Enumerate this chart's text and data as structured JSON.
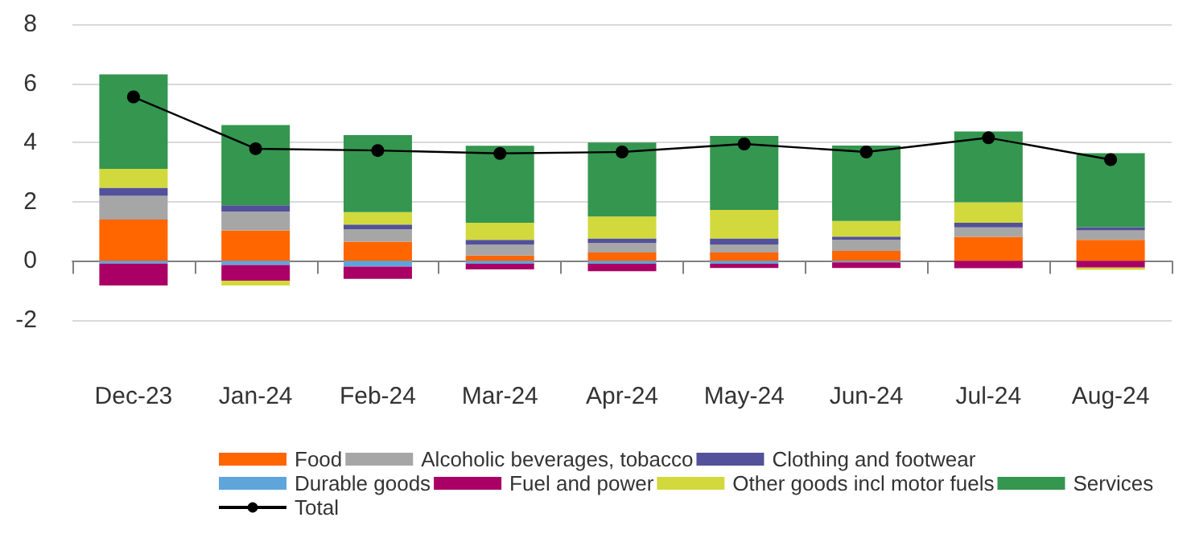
{
  "chart_data": {
    "type": "bar",
    "stacked": true,
    "categories": [
      "Dec-23",
      "Jan-24",
      "Feb-24",
      "Mar-24",
      "Apr-24",
      "May-24",
      "Jun-24",
      "Jul-24",
      "Aug-24"
    ],
    "ylim": [
      -2,
      8
    ],
    "yticks": [
      -2,
      0,
      2,
      4,
      6,
      8
    ],
    "grid": "y",
    "legend": "bottom",
    "series": [
      {
        "name": "Food",
        "color": "#ff6600",
        "values": [
          1.4,
          1.03,
          0.65,
          0.18,
          0.28,
          0.28,
          0.34,
          0.81,
          0.71
        ]
      },
      {
        "name": "Alcoholic beverages, tobacco",
        "color": "#a6a6a6",
        "values": [
          0.8,
          0.64,
          0.42,
          0.37,
          0.32,
          0.27,
          0.37,
          0.32,
          0.32
        ]
      },
      {
        "name": "Clothing and footwear",
        "color": "#525199",
        "values": [
          0.27,
          0.21,
          0.16,
          0.16,
          0.16,
          0.21,
          0.11,
          0.16,
          0.11
        ]
      },
      {
        "name": "Durable goods",
        "color": "#5ea5dc",
        "values": [
          -0.09,
          -0.14,
          -0.19,
          -0.1,
          -0.1,
          -0.1,
          -0.05,
          0,
          0
        ]
      },
      {
        "name": "Fuel and power",
        "color": "#aa0066",
        "values": [
          -0.74,
          -0.53,
          -0.42,
          -0.19,
          -0.25,
          -0.14,
          -0.19,
          -0.25,
          -0.23
        ]
      },
      {
        "name": "Other goods incl motor fuels",
        "color": "#d2d93c",
        "values": [
          0.64,
          -0.16,
          0.42,
          0.58,
          0.74,
          0.96,
          0.53,
          0.69,
          -0.07
        ]
      },
      {
        "name": "Services",
        "color": "#34964f",
        "values": [
          3.19,
          2.71,
          2.6,
          2.6,
          2.5,
          2.5,
          2.55,
          2.39,
          2.5
        ]
      },
      {
        "name": "Total",
        "type": "line",
        "color": "#000000",
        "marker": "circle",
        "values": [
          5.54,
          3.79,
          3.73,
          3.63,
          3.68,
          3.95,
          3.68,
          4.16,
          3.42
        ]
      }
    ]
  }
}
